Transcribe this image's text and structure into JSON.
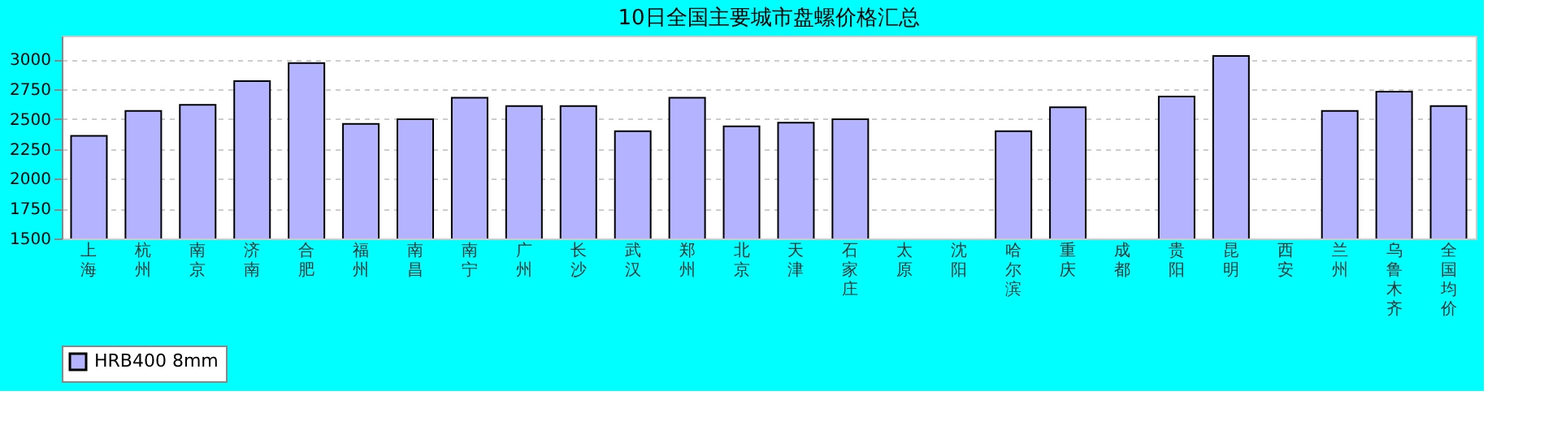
{
  "chart_data": {
    "type": "bar",
    "title": "10日全国主要城市盘螺价格汇总",
    "categories": [
      "上海",
      "杭州",
      "南京",
      "济南",
      "合肥",
      "福州",
      "南昌",
      "南宁",
      "广州",
      "长沙",
      "武汉",
      "郑州",
      "北京",
      "天津",
      "石家庄",
      "太原",
      "沈阳",
      "哈尔滨",
      "重庆",
      "成都",
      "贵阳",
      "昆明",
      "西安",
      "兰州",
      "乌鲁木齐",
      "全国均价"
    ],
    "series": [
      {
        "name": "HRB400 8mm",
        "color": "#b3b3ff",
        "values": [
          2360,
          2570,
          2620,
          2820,
          2970,
          2460,
          2500,
          2680,
          2610,
          2610,
          2400,
          2680,
          2440,
          2470,
          2500,
          null,
          null,
          2400,
          2600,
          null,
          2690,
          3030,
          null,
          2570,
          2730,
          2610
        ]
      }
    ],
    "ylim": [
      1500,
      3200
    ],
    "yticks": [
      1500,
      1750,
      2000,
      2250,
      2500,
      2750,
      3000
    ],
    "grid": "y",
    "legend": "bottom"
  }
}
